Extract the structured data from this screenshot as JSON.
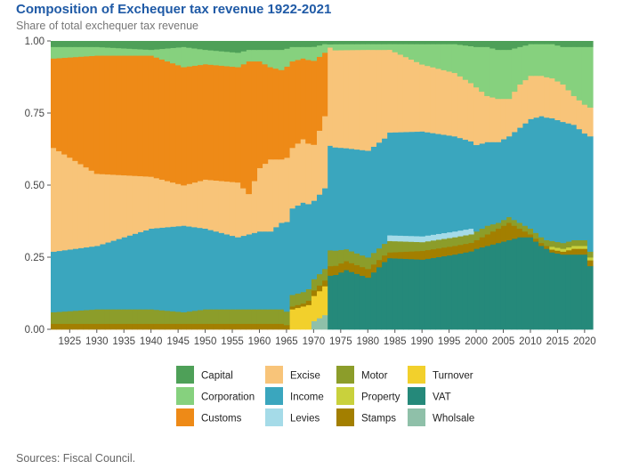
{
  "chart_data": {
    "type": "area",
    "stacked": true,
    "title": "Composition of Exchequer tax revenue 1922-2021",
    "subtitle": "Share of total exchequer tax revenue",
    "source": "Sources: Fiscal Council.",
    "xlabel": "",
    "ylabel": "",
    "xlim": [
      1922,
      2021
    ],
    "ylim": [
      0,
      1
    ],
    "x_ticks": [
      1925,
      1930,
      1935,
      1940,
      1945,
      1950,
      1955,
      1960,
      1965,
      1970,
      1975,
      1980,
      1985,
      1990,
      1995,
      2000,
      2005,
      2010,
      2015,
      2020
    ],
    "y_ticks": [
      "0.00",
      "0.25",
      "0.50",
      "0.75",
      "1.00"
    ],
    "x_anchors": [
      1922,
      1930,
      1940,
      1946,
      1950,
      1956,
      1958,
      1960,
      1962,
      1964,
      1966,
      1968,
      1970,
      1972,
      1973,
      1974,
      1976,
      1980,
      1984,
      1990,
      1996,
      2000,
      2002,
      2004,
      2006,
      2008,
      2010,
      2012,
      2014,
      2016,
      2018,
      2020,
      2021
    ],
    "series": [
      {
        "name": "VAT",
        "color": "#25897a",
        "values": [
          0,
          0,
          0,
          0,
          0,
          0,
          0,
          0,
          0,
          0,
          0,
          0,
          0,
          0,
          0.17,
          0.18,
          0.2,
          0.18,
          0.25,
          0.24,
          0.26,
          0.28,
          0.29,
          0.3,
          0.31,
          0.32,
          0.32,
          0.29,
          0.27,
          0.26,
          0.26,
          0.26,
          0.22
        ]
      },
      {
        "name": "Wholsale",
        "color": "#8fc0a9",
        "values": [
          0,
          0,
          0,
          0,
          0,
          0,
          0,
          0,
          0,
          0,
          0,
          0,
          0.03,
          0.05,
          0,
          0,
          0,
          0,
          0,
          0,
          0,
          0,
          0,
          0,
          0,
          0,
          0,
          0,
          0,
          0,
          0,
          0,
          0
        ]
      },
      {
        "name": "Turnover",
        "color": "#f2d02c",
        "values": [
          0,
          0,
          0,
          0,
          0,
          0,
          0,
          0,
          0,
          0,
          0.07,
          0.08,
          0.09,
          0.1,
          0,
          0,
          0,
          0,
          0,
          0,
          0,
          0,
          0,
          0,
          0,
          0,
          0,
          0,
          0,
          0,
          0,
          0,
          0
        ]
      },
      {
        "name": "Stamps",
        "color": "#a37f00",
        "values": [
          0.02,
          0.02,
          0.02,
          0.02,
          0.02,
          0.02,
          0.02,
          0.02,
          0.02,
          0.02,
          0.01,
          0.01,
          0.02,
          0.02,
          0.03,
          0.03,
          0.03,
          0.03,
          0.02,
          0.03,
          0.03,
          0.03,
          0.04,
          0.05,
          0.06,
          0.03,
          0.01,
          0.01,
          0.01,
          0.01,
          0.02,
          0.02,
          0.02
        ]
      },
      {
        "name": "Property",
        "color": "#c9d13c",
        "values": [
          0,
          0,
          0,
          0,
          0,
          0,
          0,
          0,
          0,
          0,
          0,
          0,
          0,
          0,
          0,
          0,
          0,
          0,
          0,
          0,
          0,
          0,
          0,
          0,
          0,
          0,
          0,
          0,
          0.01,
          0.01,
          0.01,
          0.01,
          0.01
        ]
      },
      {
        "name": "Motor",
        "color": "#8c9d2a",
        "values": [
          0.04,
          0.05,
          0.05,
          0.04,
          0.05,
          0.05,
          0.05,
          0.05,
          0.05,
          0.05,
          0.04,
          0.04,
          0.04,
          0.04,
          0.05,
          0.05,
          0.04,
          0.04,
          0.04,
          0.03,
          0.03,
          0.03,
          0.03,
          0.02,
          0.02,
          0.02,
          0.02,
          0.02,
          0.02,
          0.02,
          0.02,
          0.02,
          0.02
        ]
      },
      {
        "name": "Levies",
        "color": "#a5dbe8",
        "values": [
          0,
          0,
          0,
          0,
          0,
          0,
          0,
          0,
          0,
          0,
          0,
          0,
          0,
          0,
          0,
          0,
          0,
          0,
          0.02,
          0.02,
          0.02,
          0,
          0,
          0,
          0,
          0,
          0,
          0,
          0,
          0,
          0,
          0,
          0
        ]
      },
      {
        "name": "Income",
        "color": "#3aa6be",
        "values": [
          0.21,
          0.22,
          0.28,
          0.3,
          0.28,
          0.25,
          0.26,
          0.27,
          0.27,
          0.3,
          0.3,
          0.31,
          0.28,
          0.28,
          0.33,
          0.34,
          0.34,
          0.37,
          0.36,
          0.36,
          0.33,
          0.3,
          0.29,
          0.28,
          0.28,
          0.33,
          0.38,
          0.42,
          0.43,
          0.42,
          0.4,
          0.37,
          0.4
        ]
      },
      {
        "name": "Excise",
        "color": "#f8c479",
        "values": [
          0.36,
          0.25,
          0.18,
          0.14,
          0.17,
          0.19,
          0.14,
          0.22,
          0.25,
          0.22,
          0.21,
          0.22,
          0.2,
          0.25,
          0.31,
          0.32,
          0.33,
          0.35,
          0.29,
          0.23,
          0.22,
          0.2,
          0.16,
          0.15,
          0.13,
          0.15,
          0.15,
          0.14,
          0.14,
          0.13,
          0.1,
          0.1,
          0.1
        ]
      },
      {
        "name": "Customs",
        "color": "#ee8a17",
        "values": [
          0.31,
          0.41,
          0.42,
          0.41,
          0.4,
          0.4,
          0.46,
          0.37,
          0.32,
          0.31,
          0.3,
          0.28,
          0.3,
          0.22,
          0,
          0,
          0,
          0,
          0,
          0,
          0,
          0,
          0,
          0,
          0,
          0,
          0,
          0,
          0,
          0,
          0,
          0,
          0
        ]
      },
      {
        "name": "Corporation",
        "color": "#86d17e",
        "values": [
          0.04,
          0.03,
          0.02,
          0.07,
          0.05,
          0.05,
          0.04,
          0.04,
          0.06,
          0.07,
          0.05,
          0.04,
          0.05,
          0.03,
          0.01,
          0.02,
          0.02,
          0.02,
          0.02,
          0.07,
          0.1,
          0.14,
          0.17,
          0.17,
          0.17,
          0.13,
          0.11,
          0.11,
          0.12,
          0.13,
          0.17,
          0.2,
          0.21
        ]
      },
      {
        "name": "Capital",
        "color": "#4ea058",
        "values": [
          0.02,
          0.02,
          0.03,
          0.02,
          0.03,
          0.04,
          0.03,
          0.03,
          0.03,
          0.03,
          0.02,
          0.02,
          0.02,
          0.01,
          0.01,
          0.01,
          0.01,
          0.01,
          0.01,
          0.01,
          0.01,
          0.02,
          0.02,
          0.03,
          0.03,
          0.02,
          0.01,
          0.01,
          0.01,
          0.02,
          0.02,
          0.02,
          0.02
        ]
      }
    ],
    "legend": {
      "placement": "bottom",
      "columns": [
        [
          "Capital",
          "Corporation",
          "Customs"
        ],
        [
          "Excise",
          "Income",
          "Levies"
        ],
        [
          "Motor",
          "Property",
          "Stamps"
        ],
        [
          "Turnover",
          "VAT",
          "Wholsale"
        ]
      ]
    }
  }
}
